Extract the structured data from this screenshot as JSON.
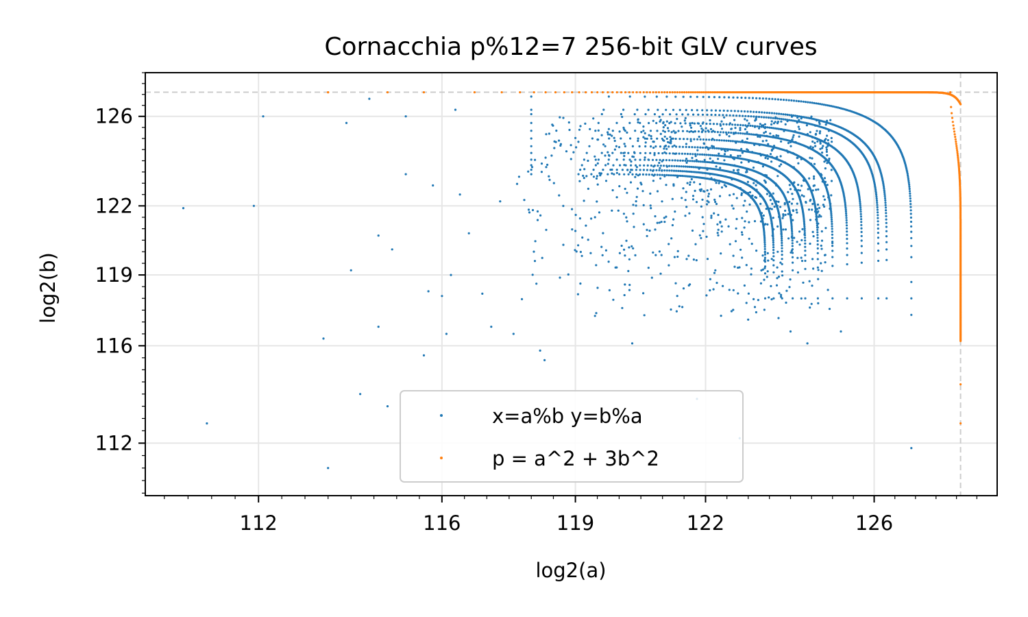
{
  "chart_data": {
    "type": "scatter",
    "title": "Cornacchia p%12=7 256-bit GLV curves",
    "xlabel": "log2(a)",
    "ylabel": "log2(b)",
    "xlim": [
      109.6,
      129.0
    ],
    "ylim": [
      109.9,
      128.0
    ],
    "x_scale": "log",
    "y_scale": "log",
    "x_ticks": [
      112,
      116,
      119,
      122,
      126
    ],
    "y_ticks": [
      112,
      116,
      119,
      122,
      126
    ],
    "x_tick_labels": [
      "112",
      "116",
      "119",
      "122",
      "126"
    ],
    "y_tick_labels": [
      "112",
      "116",
      "119",
      "122",
      "126"
    ],
    "grid": true,
    "legend_position": "lower center",
    "reference_lines": {
      "vertical_x": 128.1,
      "horizontal_y": 127.1,
      "style": "dashed",
      "color": "#cccccc"
    },
    "series": [
      {
        "name": "x=a%b y=b%a",
        "color": "#1f77b4",
        "marker": "point",
        "arc_endpoints_x": [
          126.4,
          125.8,
          125.6,
          125.2,
          124.85,
          124.5,
          124.15,
          123.85,
          123.55,
          123.3,
          123.1,
          122.9
        ],
        "arc_endpoints_y": [
          126.4,
          125.8,
          125.6,
          125.2,
          124.85,
          124.5,
          124.15,
          123.85,
          123.55,
          123.3,
          123.1,
          122.9
        ],
        "isolated_points": [
          [
            110.4,
            121.9
          ],
          [
            110.9,
            112.8
          ],
          [
            111.9,
            122.0
          ],
          [
            112.1,
            126.0
          ],
          [
            113.4,
            116.3
          ],
          [
            113.5,
            111.0
          ],
          [
            113.9,
            125.7
          ],
          [
            114.0,
            119.2
          ],
          [
            114.2,
            114.0
          ],
          [
            114.4,
            126.8
          ],
          [
            114.6,
            120.7
          ],
          [
            114.6,
            116.8
          ],
          [
            114.8,
            113.5
          ],
          [
            114.9,
            120.1
          ],
          [
            115.2,
            126.0
          ],
          [
            115.2,
            123.4
          ],
          [
            115.6,
            115.6
          ],
          [
            115.7,
            118.3
          ],
          [
            115.8,
            122.9
          ],
          [
            116.0,
            118.1
          ],
          [
            116.1,
            116.5
          ],
          [
            116.2,
            119.0
          ],
          [
            116.3,
            126.3
          ],
          [
            116.4,
            122.5
          ],
          [
            116.6,
            120.8
          ],
          [
            116.9,
            118.2
          ],
          [
            117.1,
            116.8
          ],
          [
            117.3,
            122.2
          ],
          [
            117.6,
            116.5
          ],
          [
            118.2,
            115.8
          ],
          [
            118.3,
            115.4
          ],
          [
            119.0,
            120.9
          ],
          [
            120.3,
            116.1
          ],
          [
            121.8,
            113.8
          ],
          [
            122.8,
            112.2
          ],
          [
            123.0,
            117.1
          ],
          [
            124.0,
            116.6
          ],
          [
            124.4,
            116.1
          ],
          [
            125.2,
            116.6
          ],
          [
            126.9,
            111.8
          ],
          [
            126.9,
            117.3
          ],
          [
            126.9,
            118.7
          ]
        ]
      },
      {
        "name": "p = a^2 + 3b^2",
        "color": "#ff7f0e",
        "marker": "point",
        "curve_constant": 127.1,
        "curve_a_range": [
          113.5,
          128.1
        ],
        "curve_b_range": [
          112.8,
          127.1
        ],
        "isolated_points": [
          [
            113.5,
            127.1
          ],
          [
            114.8,
            127.1
          ],
          [
            115.6,
            127.1
          ],
          [
            128.1,
            114.4
          ],
          [
            128.1,
            112.8
          ]
        ]
      }
    ]
  }
}
